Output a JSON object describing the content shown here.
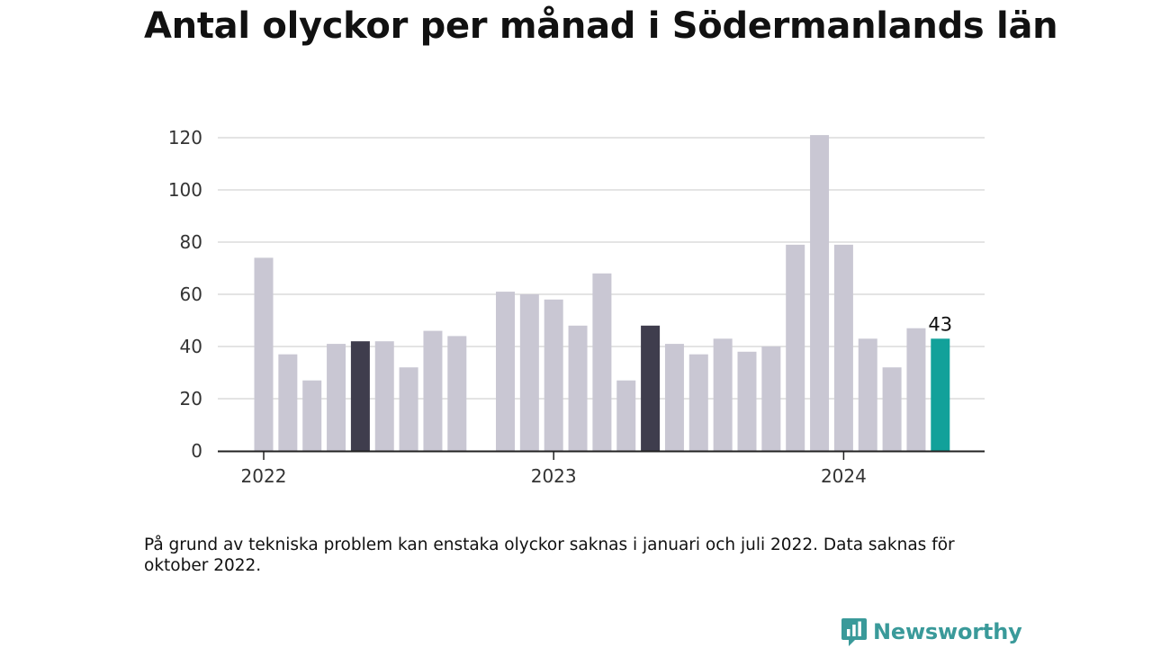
{
  "chart_data": {
    "type": "bar",
    "title": "Antal olyckor per månad i Södermanlands län",
    "xlabel": "",
    "ylabel": "",
    "ylim": [
      0,
      120
    ],
    "yticks": [
      0,
      20,
      40,
      60,
      80,
      100,
      120
    ],
    "grid": true,
    "x_tick_labels": [
      {
        "label": "2022",
        "month": "2022-01"
      },
      {
        "label": "2023",
        "month": "2023-01"
      },
      {
        "label": "2024",
        "month": "2024-01"
      }
    ],
    "months": [
      "2022-01",
      "2022-02",
      "2022-03",
      "2022-04",
      "2022-05",
      "2022-06",
      "2022-07",
      "2022-08",
      "2022-09",
      "2022-10",
      "2022-11",
      "2022-12",
      "2023-01",
      "2023-02",
      "2023-03",
      "2023-04",
      "2023-05",
      "2023-06",
      "2023-07",
      "2023-08",
      "2023-09",
      "2023-10",
      "2023-11",
      "2023-12",
      "2024-01",
      "2024-02",
      "2024-03",
      "2024-04",
      "2024-05"
    ],
    "values": [
      74,
      37,
      27,
      41,
      42,
      42,
      32,
      46,
      44,
      null,
      61,
      60,
      58,
      48,
      68,
      27,
      48,
      41,
      37,
      43,
      38,
      40,
      79,
      121,
      79,
      43,
      32,
      47,
      43
    ],
    "highlighted": [
      {
        "month": "2022-05",
        "color": "#3f3d4d"
      },
      {
        "month": "2023-05",
        "color": "#3f3d4d"
      },
      {
        "month": "2024-05",
        "color": "#12a19a",
        "label": "43"
      }
    ],
    "default_color": "#c9c7d3"
  },
  "note": "På grund av tekniska problem kan enstaka olyckor saknas i januari och juli 2022. Data saknas för oktober 2022.",
  "brand": {
    "name": "Newsworthy",
    "icon": "bar-chart-speech-bubble-icon",
    "color": "#3a9a9a"
  }
}
